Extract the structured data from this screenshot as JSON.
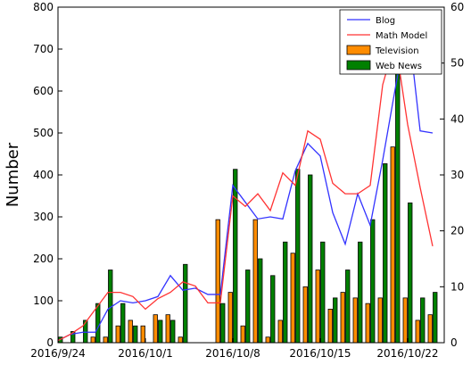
{
  "chart_data": {
    "type": "bar",
    "title": "",
    "ylabel": "Number",
    "xlabel": "",
    "y_left": {
      "ylim": [
        0,
        800
      ],
      "ticks": [
        0,
        100,
        200,
        300,
        400,
        500,
        600,
        700,
        800
      ]
    },
    "y_right": {
      "ylim": [
        0,
        60
      ],
      "ticks": [
        0,
        10,
        20,
        30,
        40,
        50,
        60
      ]
    },
    "x_tick_labels": [
      "2016/9/24",
      "2016/10/1",
      "2016/10/8",
      "2016/10/15",
      "2016/10/22"
    ],
    "x_tick_days": [
      0,
      7,
      14,
      21,
      28
    ],
    "legend": {
      "position": "top-right"
    },
    "grid": false,
    "days": [
      0,
      1,
      2,
      3,
      4,
      5,
      6,
      7,
      8,
      9,
      10,
      11,
      12,
      13,
      14,
      15,
      16,
      17,
      18,
      19,
      20,
      21,
      22,
      23,
      24,
      25,
      26,
      27,
      28,
      29,
      30
    ],
    "series": [
      {
        "name": "Blog",
        "kind": "line",
        "axis": "left",
        "color": "#3333ff",
        "values": [
          5,
          20,
          25,
          25,
          80,
          100,
          95,
          100,
          110,
          160,
          125,
          130,
          115,
          115,
          375,
          335,
          295,
          300,
          295,
          410,
          475,
          445,
          310,
          235,
          355,
          280,
          435,
          605,
          770,
          505,
          500
        ]
      },
      {
        "name": "Math Model",
        "kind": "line",
        "axis": "left",
        "color": "#ff3333",
        "values": [
          5,
          20,
          40,
          80,
          120,
          120,
          110,
          80,
          105,
          120,
          145,
          135,
          95,
          95,
          350,
          325,
          355,
          315,
          405,
          375,
          505,
          485,
          380,
          355,
          355,
          375,
          615,
          720,
          520,
          370,
          230
        ]
      },
      {
        "name": "Television",
        "kind": "bar",
        "axis": "right",
        "color": "#ff8c00",
        "values": [
          0,
          0,
          0,
          1,
          1,
          3,
          4,
          3,
          5,
          5,
          1,
          0,
          0,
          22,
          9,
          3,
          22,
          1,
          4,
          16,
          10,
          13,
          6,
          9,
          8,
          7,
          8,
          35,
          8,
          4,
          5
        ]
      },
      {
        "name": "Web News",
        "kind": "bar",
        "axis": "right",
        "color": "#008000",
        "values": [
          1,
          2,
          4,
          7,
          13,
          7,
          3,
          0,
          4,
          4,
          14,
          0,
          0,
          7,
          31,
          13,
          15,
          12,
          18,
          31,
          30,
          18,
          8,
          13,
          18,
          22,
          32,
          53,
          25,
          8,
          9
        ]
      }
    ]
  }
}
